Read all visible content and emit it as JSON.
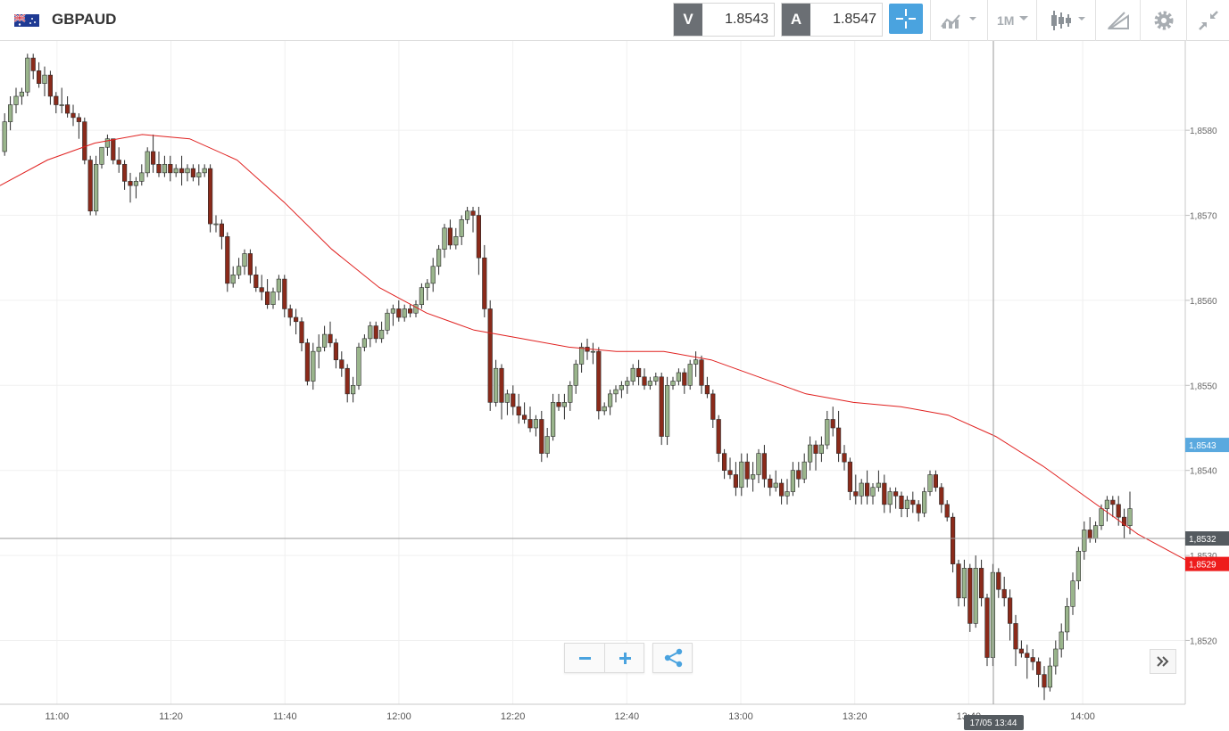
{
  "toolbar": {
    "symbol": "GBPAUD",
    "sell_label": "V",
    "sell_price": "1.8543",
    "buy_label": "A",
    "buy_price": "1.8547",
    "timeframe": "1M",
    "icons": [
      "flag-gb-au-icon",
      "crosshair-icon",
      "indicators-icon",
      "timeframe-chevron-icon",
      "candlestick-chart-type-icon",
      "drawing-tools-icon",
      "settings-gear-icon",
      "collapse-icon"
    ]
  },
  "chart_data": {
    "type": "candlestick",
    "symbol": "GBPAUD",
    "interval": "1M",
    "y_ticks": [
      "1,8520",
      "1,8530",
      "1,8540",
      "1,8550",
      "1,8560",
      "1,8570",
      "1,8580"
    ],
    "x_ticks": [
      "11:00",
      "11:20",
      "11:40",
      "12:00",
      "12:20",
      "12:40",
      "13:00",
      "13:20",
      "13:40",
      "14:00"
    ],
    "ylim": [
      1.85125,
      1.85905
    ],
    "xlim": [
      "10:50",
      "14:18"
    ],
    "price_labels": {
      "bid": "1,8543",
      "crosshair": "1,8532",
      "moving_average": "1,8529"
    },
    "crosshair_time_label": "17/05 13:44",
    "candle_colors": {
      "up": "#9ab58c",
      "down": "#8b2a1a"
    },
    "moving_average_color": "#e0201f",
    "candles_ohlc": [
      [
        1.85775,
        1.8582,
        1.8577,
        1.8581
      ],
      [
        1.8581,
        1.8584,
        1.858,
        1.8583
      ],
      [
        1.8583,
        1.8585,
        1.8582,
        1.8584
      ],
      [
        1.8584,
        1.8585,
        1.8583,
        1.85845
      ],
      [
        1.85845,
        1.8589,
        1.8584,
        1.85885
      ],
      [
        1.85885,
        1.8589,
        1.8586,
        1.8587
      ],
      [
        1.8587,
        1.8588,
        1.8585,
        1.85855
      ],
      [
        1.85855,
        1.85875,
        1.8584,
        1.85865
      ],
      [
        1.85865,
        1.8587,
        1.8583,
        1.8584
      ],
      [
        1.8584,
        1.85845,
        1.8582,
        1.8583
      ],
      [
        1.8583,
        1.8585,
        1.8582,
        1.8583
      ],
      [
        1.8583,
        1.8584,
        1.85815,
        1.8582
      ],
      [
        1.8582,
        1.8583,
        1.85805,
        1.85815
      ],
      [
        1.85815,
        1.8582,
        1.8579,
        1.8581
      ],
      [
        1.8581,
        1.85815,
        1.8576,
        1.85765
      ],
      [
        1.85765,
        1.8577,
        1.857,
        1.85705
      ],
      [
        1.85705,
        1.8577,
        1.857,
        1.8576
      ],
      [
        1.8576,
        1.8578,
        1.85755,
        1.8578
      ],
      [
        1.8578,
        1.85795,
        1.8577,
        1.8579
      ],
      [
        1.8579,
        1.8579,
        1.8576,
        1.85765
      ],
      [
        1.85765,
        1.8578,
        1.8575,
        1.8576
      ],
      [
        1.8576,
        1.85765,
        1.8573,
        1.8574
      ],
      [
        1.8574,
        1.8575,
        1.85715,
        1.85735
      ],
      [
        1.85735,
        1.85745,
        1.8572,
        1.8574
      ],
      [
        1.8574,
        1.8576,
        1.85735,
        1.8575
      ],
      [
        1.8575,
        1.8578,
        1.85745,
        1.85775
      ],
      [
        1.85775,
        1.85795,
        1.8575,
        1.8576
      ],
      [
        1.8576,
        1.85775,
        1.85745,
        1.8575
      ],
      [
        1.8575,
        1.8577,
        1.85745,
        1.8576
      ],
      [
        1.8576,
        1.8577,
        1.8574,
        1.8575
      ],
      [
        1.8575,
        1.8576,
        1.85745,
        1.85755
      ],
      [
        1.85755,
        1.8577,
        1.85735,
        1.8575
      ],
      [
        1.8575,
        1.8576,
        1.8574,
        1.85755
      ],
      [
        1.85755,
        1.8576,
        1.8574,
        1.85745
      ],
      [
        1.85745,
        1.8576,
        1.85735,
        1.8575
      ],
      [
        1.8575,
        1.8576,
        1.85745,
        1.85755
      ],
      [
        1.85755,
        1.8576,
        1.8568,
        1.8569
      ],
      [
        1.8569,
        1.857,
        1.8568,
        1.8569
      ],
      [
        1.8569,
        1.85695,
        1.8566,
        1.85675
      ],
      [
        1.85675,
        1.8568,
        1.8561,
        1.8562
      ],
      [
        1.8562,
        1.8564,
        1.85615,
        1.8563
      ],
      [
        1.8563,
        1.8565,
        1.85625,
        1.8564
      ],
      [
        1.8564,
        1.8566,
        1.8563,
        1.85655
      ],
      [
        1.85655,
        1.8566,
        1.8562,
        1.8563
      ],
      [
        1.8563,
        1.8564,
        1.8561,
        1.85615
      ],
      [
        1.85615,
        1.8563,
        1.856,
        1.8561
      ],
      [
        1.8561,
        1.85625,
        1.8559,
        1.85595
      ],
      [
        1.85595,
        1.85615,
        1.8559,
        1.8561
      ],
      [
        1.8561,
        1.8563,
        1.856,
        1.85625
      ],
      [
        1.85625,
        1.8563,
        1.8558,
        1.8559
      ],
      [
        1.8559,
        1.85595,
        1.8557,
        1.8558
      ],
      [
        1.8558,
        1.8559,
        1.8556,
        1.85575
      ],
      [
        1.85575,
        1.8558,
        1.8554,
        1.8555
      ],
      [
        1.8555,
        1.85555,
        1.855,
        1.85505
      ],
      [
        1.85505,
        1.8555,
        1.85495,
        1.8554
      ],
      [
        1.8554,
        1.8556,
        1.8552,
        1.85545
      ],
      [
        1.85545,
        1.8557,
        1.8554,
        1.8556
      ],
      [
        1.8556,
        1.85575,
        1.85545,
        1.8555
      ],
      [
        1.8555,
        1.85555,
        1.8552,
        1.8553
      ],
      [
        1.8553,
        1.8554,
        1.8551,
        1.8552
      ],
      [
        1.8552,
        1.85525,
        1.8548,
        1.8549
      ],
      [
        1.8549,
        1.8551,
        1.8548,
        1.855
      ],
      [
        1.855,
        1.8555,
        1.85495,
        1.85545
      ],
      [
        1.85545,
        1.8556,
        1.8554,
        1.85555
      ],
      [
        1.85555,
        1.85575,
        1.85545,
        1.8557
      ],
      [
        1.8557,
        1.85575,
        1.8555,
        1.85555
      ],
      [
        1.85555,
        1.85575,
        1.8555,
        1.85565
      ],
      [
        1.85565,
        1.8559,
        1.8556,
        1.85585
      ],
      [
        1.85585,
        1.85595,
        1.8557,
        1.8559
      ],
      [
        1.8559,
        1.856,
        1.85575,
        1.8558
      ],
      [
        1.8558,
        1.85595,
        1.85575,
        1.8559
      ],
      [
        1.8559,
        1.85595,
        1.8558,
        1.85585
      ],
      [
        1.85585,
        1.856,
        1.8558,
        1.85595
      ],
      [
        1.85595,
        1.8562,
        1.8559,
        1.85615
      ],
      [
        1.85615,
        1.85625,
        1.856,
        1.8562
      ],
      [
        1.8562,
        1.8565,
        1.8561,
        1.8564
      ],
      [
        1.8564,
        1.85665,
        1.8563,
        1.8566
      ],
      [
        1.8566,
        1.8569,
        1.8565,
        1.85685
      ],
      [
        1.85685,
        1.85695,
        1.8566,
        1.85665
      ],
      [
        1.85665,
        1.85685,
        1.8566,
        1.85675
      ],
      [
        1.85675,
        1.857,
        1.85665,
        1.85695
      ],
      [
        1.85695,
        1.8571,
        1.8569,
        1.85705
      ],
      [
        1.85705,
        1.8571,
        1.8568,
        1.857
      ],
      [
        1.857,
        1.8571,
        1.8563,
        1.8565
      ],
      [
        1.8565,
        1.85665,
        1.8558,
        1.8559
      ],
      [
        1.8559,
        1.856,
        1.8547,
        1.8548
      ],
      [
        1.8548,
        1.8553,
        1.85475,
        1.8552
      ],
      [
        1.8552,
        1.85525,
        1.8546,
        1.8548
      ],
      [
        1.8548,
        1.85495,
        1.85465,
        1.8549
      ],
      [
        1.8549,
        1.855,
        1.85465,
        1.85475
      ],
      [
        1.85475,
        1.8549,
        1.85455,
        1.85465
      ],
      [
        1.85465,
        1.8548,
        1.85455,
        1.8546
      ],
      [
        1.8546,
        1.85475,
        1.85445,
        1.8545
      ],
      [
        1.8545,
        1.85465,
        1.8544,
        1.8546
      ],
      [
        1.8546,
        1.8547,
        1.8541,
        1.8542
      ],
      [
        1.8542,
        1.8545,
        1.85415,
        1.8544
      ],
      [
        1.8544,
        1.8549,
        1.85435,
        1.8548
      ],
      [
        1.8548,
        1.8549,
        1.8547,
        1.85475
      ],
      [
        1.85475,
        1.8549,
        1.8546,
        1.8548
      ],
      [
        1.8548,
        1.85505,
        1.8547,
        1.855
      ],
      [
        1.855,
        1.8553,
        1.8549,
        1.85525
      ],
      [
        1.85525,
        1.8555,
        1.85515,
        1.85545
      ],
      [
        1.85545,
        1.85555,
        1.8553,
        1.8554
      ],
      [
        1.8554,
        1.8555,
        1.85525,
        1.8554
      ],
      [
        1.8554,
        1.85545,
        1.8546,
        1.8547
      ],
      [
        1.8547,
        1.8548,
        1.85465,
        1.85475
      ],
      [
        1.85475,
        1.85495,
        1.85465,
        1.8549
      ],
      [
        1.8549,
        1.855,
        1.8548,
        1.85495
      ],
      [
        1.85495,
        1.85505,
        1.85485,
        1.855
      ],
      [
        1.855,
        1.8551,
        1.8549,
        1.85505
      ],
      [
        1.85505,
        1.85525,
        1.855,
        1.8552
      ],
      [
        1.8552,
        1.8553,
        1.855,
        1.8551
      ],
      [
        1.8551,
        1.8552,
        1.85495,
        1.855
      ],
      [
        1.855,
        1.8551,
        1.85495,
        1.85505
      ],
      [
        1.85505,
        1.85515,
        1.855,
        1.8551
      ],
      [
        1.8551,
        1.85515,
        1.8543,
        1.8544
      ],
      [
        1.8544,
        1.8551,
        1.8543,
        1.855
      ],
      [
        1.855,
        1.8551,
        1.85495,
        1.85505
      ],
      [
        1.85505,
        1.8552,
        1.855,
        1.85515
      ],
      [
        1.85515,
        1.8552,
        1.8549,
        1.855
      ],
      [
        1.855,
        1.8553,
        1.85495,
        1.85525
      ],
      [
        1.85525,
        1.8554,
        1.8551,
        1.8553
      ],
      [
        1.8553,
        1.85535,
        1.8549,
        1.855
      ],
      [
        1.855,
        1.8551,
        1.85485,
        1.8549
      ],
      [
        1.8549,
        1.85495,
        1.8545,
        1.8546
      ],
      [
        1.8546,
        1.85465,
        1.8541,
        1.8542
      ],
      [
        1.8542,
        1.85425,
        1.8539,
        1.854
      ],
      [
        1.854,
        1.85415,
        1.8539,
        1.85395
      ],
      [
        1.85395,
        1.8541,
        1.8537,
        1.8538
      ],
      [
        1.8538,
        1.8542,
        1.8537,
        1.8541
      ],
      [
        1.8541,
        1.8542,
        1.8538,
        1.8539
      ],
      [
        1.8539,
        1.8541,
        1.85375,
        1.85395
      ],
      [
        1.85395,
        1.85425,
        1.85385,
        1.8542
      ],
      [
        1.8542,
        1.8543,
        1.8538,
        1.8539
      ],
      [
        1.8539,
        1.85395,
        1.8537,
        1.8538
      ],
      [
        1.8538,
        1.854,
        1.85375,
        1.85385
      ],
      [
        1.85385,
        1.8539,
        1.8536,
        1.8537
      ],
      [
        1.8537,
        1.8539,
        1.8536,
        1.85375
      ],
      [
        1.85375,
        1.8541,
        1.8537,
        1.854
      ],
      [
        1.854,
        1.8541,
        1.8538,
        1.8539
      ],
      [
        1.8539,
        1.8542,
        1.85385,
        1.8541
      ],
      [
        1.8541,
        1.8544,
        1.854,
        1.8543
      ],
      [
        1.8543,
        1.85435,
        1.854,
        1.8542
      ],
      [
        1.8542,
        1.8544,
        1.8541,
        1.8543
      ],
      [
        1.8543,
        1.8547,
        1.85425,
        1.8546
      ],
      [
        1.8546,
        1.85475,
        1.8544,
        1.8545
      ],
      [
        1.8545,
        1.8547,
        1.8541,
        1.8542
      ],
      [
        1.8542,
        1.8543,
        1.854,
        1.8541
      ],
      [
        1.8541,
        1.85415,
        1.85365,
        1.85375
      ],
      [
        1.85375,
        1.85395,
        1.8536,
        1.8537
      ],
      [
        1.8537,
        1.8539,
        1.8536,
        1.85385
      ],
      [
        1.85385,
        1.854,
        1.8536,
        1.8537
      ],
      [
        1.8537,
        1.85385,
        1.8536,
        1.8538
      ],
      [
        1.8538,
        1.854,
        1.85375,
        1.85385
      ],
      [
        1.85385,
        1.85395,
        1.8535,
        1.8536
      ],
      [
        1.8536,
        1.8538,
        1.8535,
        1.85375
      ],
      [
        1.85375,
        1.8538,
        1.85355,
        1.8537
      ],
      [
        1.8537,
        1.85375,
        1.85345,
        1.85355
      ],
      [
        1.85355,
        1.8537,
        1.85345,
        1.85365
      ],
      [
        1.85365,
        1.85375,
        1.8535,
        1.8536
      ],
      [
        1.8536,
        1.85365,
        1.8534,
        1.8535
      ],
      [
        1.8535,
        1.8538,
        1.85345,
        1.85375
      ],
      [
        1.85375,
        1.854,
        1.8537,
        1.85395
      ],
      [
        1.85395,
        1.854,
        1.85375,
        1.8538
      ],
      [
        1.8538,
        1.85385,
        1.8535,
        1.8536
      ],
      [
        1.8536,
        1.85365,
        1.8534,
        1.85345
      ],
      [
        1.85345,
        1.8535,
        1.8528,
        1.8529
      ],
      [
        1.8529,
        1.85295,
        1.8524,
        1.8525
      ],
      [
        1.8525,
        1.85295,
        1.8524,
        1.85285
      ],
      [
        1.85285,
        1.8529,
        1.8521,
        1.8522
      ],
      [
        1.8522,
        1.853,
        1.85215,
        1.85285
      ],
      [
        1.85285,
        1.85295,
        1.8524,
        1.8525
      ],
      [
        1.8525,
        1.85255,
        1.8517,
        1.8518
      ],
      [
        1.8518,
        1.8529,
        1.8517,
        1.8528
      ],
      [
        1.8528,
        1.85285,
        1.8525,
        1.8526
      ],
      [
        1.8526,
        1.85275,
        1.8524,
        1.8525
      ],
      [
        1.8525,
        1.8526,
        1.852,
        1.8522
      ],
      [
        1.8522,
        1.8523,
        1.8517,
        1.8519
      ],
      [
        1.8519,
        1.852,
        1.8518,
        1.85185
      ],
      [
        1.85185,
        1.85195,
        1.85155,
        1.8518
      ],
      [
        1.8518,
        1.8519,
        1.85165,
        1.85175
      ],
      [
        1.85175,
        1.8518,
        1.85145,
        1.8516
      ],
      [
        1.8516,
        1.8517,
        1.8513,
        1.85145
      ],
      [
        1.85145,
        1.8518,
        1.8514,
        1.8517
      ],
      [
        1.8517,
        1.852,
        1.8516,
        1.8519
      ],
      [
        1.8519,
        1.8522,
        1.8518,
        1.8521
      ],
      [
        1.8521,
        1.8525,
        1.852,
        1.8524
      ],
      [
        1.8524,
        1.8528,
        1.8523,
        1.8527
      ],
      [
        1.8527,
        1.8531,
        1.8526,
        1.85305
      ],
      [
        1.85305,
        1.8534,
        1.85295,
        1.8533
      ],
      [
        1.8533,
        1.85345,
        1.85315,
        1.8532
      ],
      [
        1.8532,
        1.8534,
        1.85315,
        1.85335
      ],
      [
        1.85335,
        1.8536,
        1.8533,
        1.85355
      ],
      [
        1.85355,
        1.8537,
        1.8534,
        1.85365
      ],
      [
        1.85365,
        1.8537,
        1.85345,
        1.8536
      ],
      [
        1.8536,
        1.8537,
        1.85335,
        1.85345
      ],
      [
        1.85345,
        1.85355,
        1.8532,
        1.85335
      ],
      [
        1.85335,
        1.85375,
        1.85325,
        1.85355
      ]
    ],
    "moving_average": [
      1.85735,
      1.85765,
      1.85785,
      1.85795,
      1.8579,
      1.85765,
      1.85715,
      1.8566,
      1.85615,
      1.85585,
      1.85565,
      1.85555,
      1.85545,
      1.8554,
      1.8554,
      1.8553,
      1.8551,
      1.8549,
      1.8548,
      1.85475,
      1.85465,
      1.8544,
      1.85405,
      1.85365,
      1.85325,
      1.85295
    ]
  }
}
